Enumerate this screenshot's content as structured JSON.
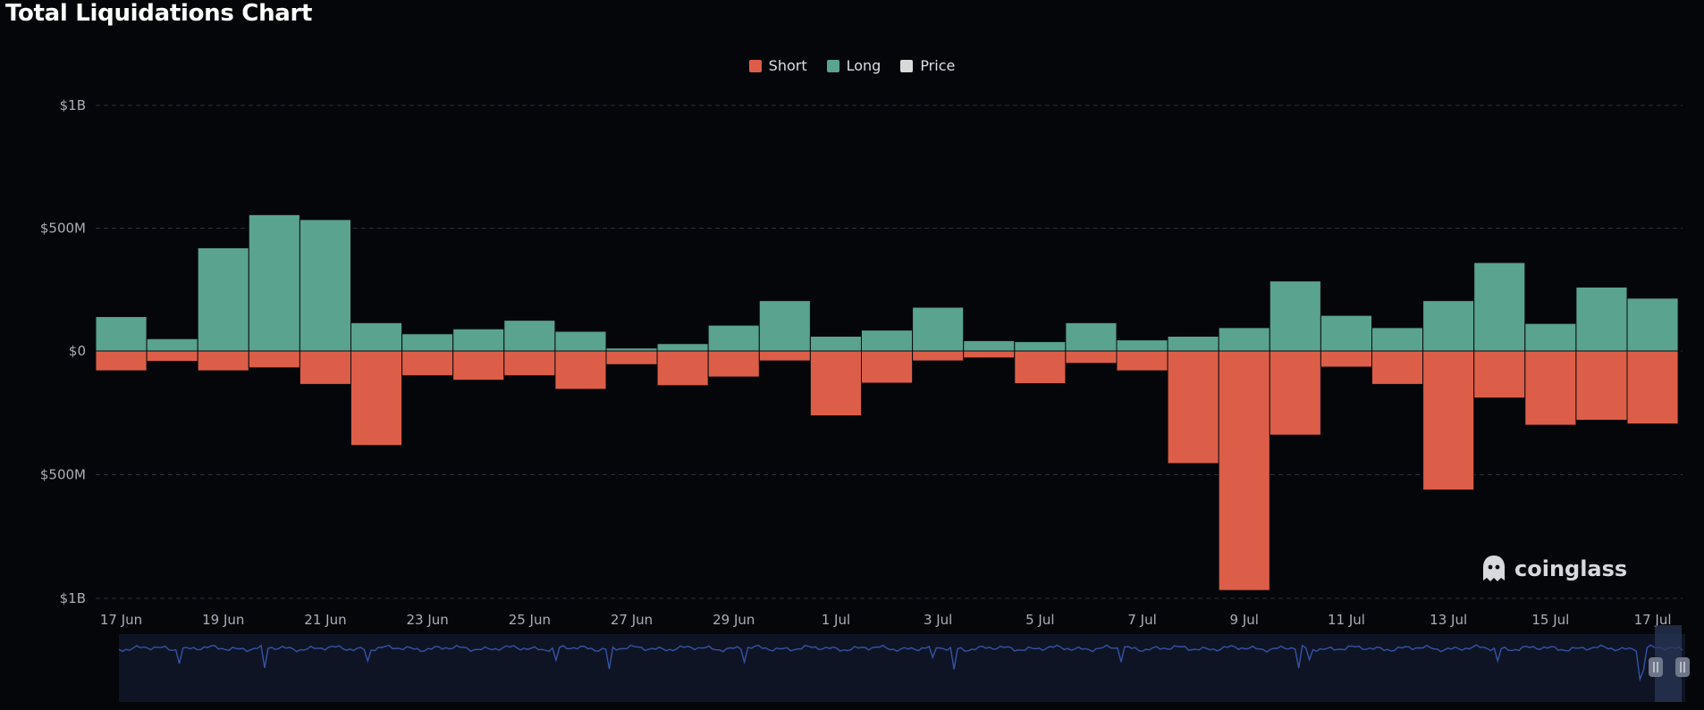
{
  "title": "Total Liquidations Chart",
  "legend": [
    {
      "label": "Short",
      "color": "#dd5e48"
    },
    {
      "label": "Long",
      "color": "#5aa38e"
    },
    {
      "label": "Price",
      "color": "#d9d9d9"
    }
  ],
  "watermark": {
    "text": "coinglass",
    "icon": "ghost-logo-icon"
  },
  "chart_data": {
    "type": "bar",
    "stacked": "diverging",
    "categories": [
      "17 Jun",
      "18 Jun",
      "19 Jun",
      "20 Jun",
      "21 Jun",
      "22 Jun",
      "23 Jun",
      "24 Jun",
      "25 Jun",
      "26 Jun",
      "27 Jun",
      "28 Jun",
      "29 Jun",
      "30 Jun",
      "1 Jul",
      "2 Jul",
      "3 Jul",
      "4 Jul",
      "5 Jul",
      "6 Jul",
      "7 Jul",
      "8 Jul",
      "9 Jul",
      "10 Jul",
      "11 Jul",
      "12 Jul",
      "13 Jul",
      "14 Jul",
      "15 Jul",
      "16 Jul",
      "17 Jul"
    ],
    "x_tick_labels": [
      "17 Jun",
      "19 Jun",
      "21 Jun",
      "23 Jun",
      "25 Jun",
      "27 Jun",
      "29 Jun",
      "1 Jul",
      "3 Jul",
      "5 Jul",
      "7 Jul",
      "9 Jul",
      "11 Jul",
      "13 Jul",
      "15 Jul",
      "17 Jul"
    ],
    "y_tick_labels": [
      {
        "value": 1000,
        "label": "$1B"
      },
      {
        "value": 500,
        "label": "$500M"
      },
      {
        "value": 0,
        "label": "$0"
      },
      {
        "value": -500,
        "label": "$500M"
      },
      {
        "value": -1000,
        "label": "$1B"
      }
    ],
    "ylim": [
      -1000,
      1000
    ],
    "unit": "USD millions",
    "series": [
      {
        "name": "Long",
        "color": "#5aa38e",
        "values": [
          140,
          50,
          420,
          555,
          535,
          115,
          70,
          90,
          125,
          80,
          12,
          30,
          105,
          205,
          60,
          85,
          178,
          42,
          38,
          115,
          45,
          60,
          95,
          285,
          145,
          95,
          205,
          360,
          112,
          260,
          215
        ]
      },
      {
        "name": "Short",
        "color": "#dd5e48",
        "values": [
          -80,
          -42,
          -80,
          -68,
          -135,
          -382,
          -100,
          -118,
          -100,
          -155,
          -55,
          -140,
          -105,
          -40,
          -262,
          -130,
          -40,
          -28,
          -132,
          -50,
          -80,
          -455,
          -968,
          -340,
          -65,
          -135,
          -562,
          -190,
          -300,
          -280,
          -295
        ]
      }
    ],
    "grid": true,
    "legend_position": "top-center"
  }
}
